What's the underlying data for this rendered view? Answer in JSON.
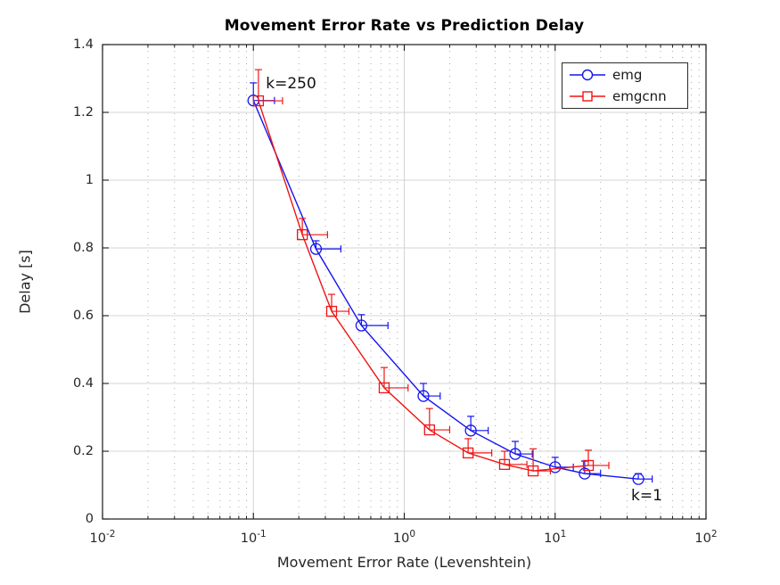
{
  "chart_data": {
    "type": "line",
    "title": "Movement Error Rate vs Prediction Delay",
    "xlabel": "Movement Error Rate (Levenshtein)",
    "ylabel": "Delay [s]",
    "x_scale": "log",
    "xlim": [
      0.01,
      100
    ],
    "ylim": [
      0,
      1.4
    ],
    "grid": "major-solid-minor-dotted",
    "legend_position": "top-right",
    "x_ticks": [
      {
        "base": "10",
        "exp": "-2",
        "value": 0.01
      },
      {
        "base": "10",
        "exp": "-1",
        "value": 0.1
      },
      {
        "base": "10",
        "exp": "0",
        "value": 1
      },
      {
        "base": "10",
        "exp": "1",
        "value": 10
      },
      {
        "base": "10",
        "exp": "2",
        "value": 100
      }
    ],
    "y_ticks": [
      "0",
      "0.2",
      "0.4",
      "0.6",
      "0.8",
      "1",
      "1.2",
      "1.4"
    ],
    "annotations": [
      {
        "text": "k=250",
        "x": 0.121,
        "y": 1.31
      },
      {
        "text": "k=1",
        "x": 31.9,
        "y": 0.095
      }
    ],
    "series": [
      {
        "name": "emg",
        "color": "#1414f0",
        "marker": "circle",
        "points": [
          {
            "x": 0.1,
            "y": 1.235,
            "x_err_hi": 0.138,
            "y_err_hi": 1.287
          },
          {
            "x": 0.26,
            "y": 0.797,
            "x_err_hi": 0.38,
            "y_err_hi": 0.821
          },
          {
            "x": 0.52,
            "y": 0.571,
            "x_err_hi": 0.78,
            "y_err_hi": 0.603
          },
          {
            "x": 1.34,
            "y": 0.363,
            "x_err_hi": 1.73,
            "y_err_hi": 0.4
          },
          {
            "x": 2.76,
            "y": 0.261,
            "x_err_hi": 3.6,
            "y_err_hi": 0.303
          },
          {
            "x": 5.44,
            "y": 0.192,
            "x_err_hi": 7.06,
            "y_err_hi": 0.229
          },
          {
            "x": 10.0,
            "y": 0.153,
            "x_err_hi": 13.2,
            "y_err_hi": 0.182
          },
          {
            "x": 15.7,
            "y": 0.134,
            "x_err_hi": 20.0,
            "y_err_hi": 0.171
          },
          {
            "x": 35.6,
            "y": 0.118,
            "x_err_hi": 44.0,
            "y_err_hi": 0.134
          }
        ]
      },
      {
        "name": "emgcnn",
        "color": "#f01414",
        "marker": "square",
        "points": [
          {
            "x": 0.108,
            "y": 1.234,
            "x_err_hi": 0.156,
            "y_err_hi": 1.326
          },
          {
            "x": 0.211,
            "y": 0.839,
            "x_err_hi": 0.31,
            "y_err_hi": 0.887
          },
          {
            "x": 0.33,
            "y": 0.613,
            "x_err_hi": 0.43,
            "y_err_hi": 0.663
          },
          {
            "x": 0.736,
            "y": 0.387,
            "x_err_hi": 1.06,
            "y_err_hi": 0.447
          },
          {
            "x": 1.47,
            "y": 0.263,
            "x_err_hi": 2.0,
            "y_err_hi": 0.326
          },
          {
            "x": 2.65,
            "y": 0.195,
            "x_err_hi": 3.8,
            "y_err_hi": 0.237
          },
          {
            "x": 4.62,
            "y": 0.161,
            "x_err_hi": 6.5,
            "y_err_hi": 0.2
          },
          {
            "x": 7.15,
            "y": 0.142,
            "x_err_hi": 9.3,
            "y_err_hi": 0.207
          },
          {
            "x": 16.6,
            "y": 0.158,
            "x_err_hi": 22.7,
            "y_err_hi": 0.203
          }
        ]
      }
    ],
    "colors": {
      "axis": "#1a1a1a",
      "major_grid": "#d4d4d4",
      "minor_grid": "#a8a8a8",
      "tick_label": "#262626"
    }
  }
}
